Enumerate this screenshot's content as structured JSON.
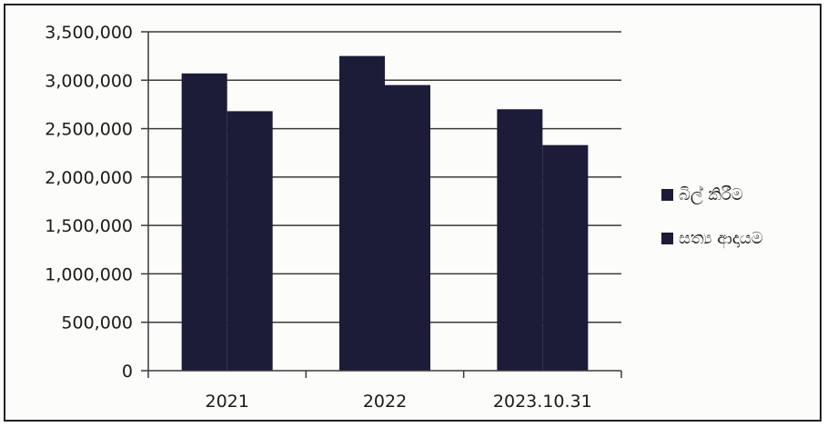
{
  "chart_data": {
    "type": "bar",
    "categories": [
      "2021",
      "2022",
      "2023.10.31"
    ],
    "series": [
      {
        "name": "බිල් කිරීම",
        "values": [
          3070000,
          3250000,
          2700000
        ],
        "color": "#1c1b38"
      },
      {
        "name": "සත්‍ය ආදායම",
        "values": [
          2680000,
          2950000,
          2330000
        ],
        "color": "#1c1b38"
      }
    ],
    "ylim": [
      0,
      3500000
    ],
    "yticks": [
      {
        "value": 0,
        "label": "0"
      },
      {
        "value": 500000,
        "label": "500,000"
      },
      {
        "value": 1000000,
        "label": "1,000,000"
      },
      {
        "value": 1500000,
        "label": "1,500,000"
      },
      {
        "value": 2000000,
        "label": "2,000,000"
      },
      {
        "value": 2500000,
        "label": "2,500,000"
      },
      {
        "value": 3000000,
        "label": "3,000,000"
      },
      {
        "value": 3500000,
        "label": "3,500,000"
      }
    ],
    "grid": true,
    "legend_position": "right",
    "title": "",
    "xlabel": "",
    "ylabel": ""
  }
}
